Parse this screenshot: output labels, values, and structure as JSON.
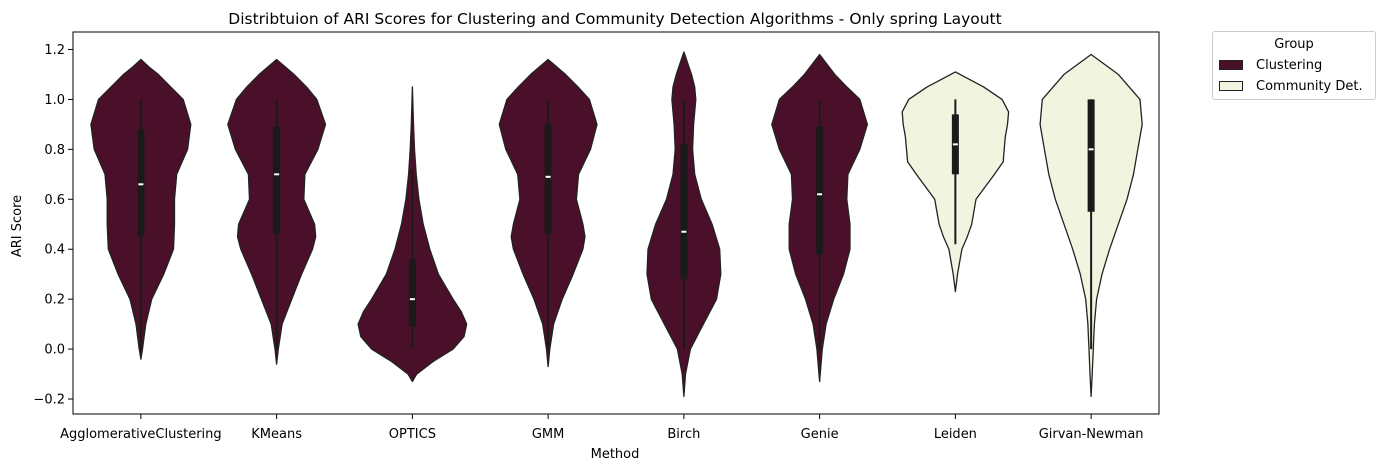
{
  "chart_data": {
    "type": "violin",
    "title": "Distribtuion of ARI Scores for Clustering and Community Detection Algorithms - Only spring Layoutt",
    "xlabel": "Method",
    "ylabel": "ARI Score",
    "ylim": [
      -0.26,
      1.27
    ],
    "yticks": [
      -0.2,
      0.0,
      0.2,
      0.4,
      0.6,
      0.8,
      1.0,
      1.2
    ],
    "ytick_labels": [
      "−0.2",
      "0.0",
      "0.2",
      "0.4",
      "0.6",
      "0.8",
      "1.0",
      "1.2"
    ],
    "categories": [
      "AgglomerativeClustering",
      "KMeans",
      "OPTICS",
      "GMM",
      "Birch",
      "Genie",
      "Leiden",
      "Girvan-Newman"
    ],
    "groups": [
      "Clustering",
      "Clustering",
      "Clustering",
      "Clustering",
      "Clustering",
      "Clustering",
      "Community Det.",
      "Community Det."
    ],
    "legend": {
      "title": "Group",
      "placement": "outside-top-right",
      "entries": [
        {
          "label": "Clustering",
          "color": "#4a1029"
        },
        {
          "label": "Community Det.",
          "color": "#f1f4df"
        }
      ]
    },
    "series": [
      {
        "name": "AgglomerativeClustering",
        "min": 0.0,
        "q1": 0.45,
        "median": 0.66,
        "q3": 0.88,
        "max": 1.0,
        "density_y": [
          -0.04,
          0.0,
          0.1,
          0.2,
          0.3,
          0.4,
          0.5,
          0.6,
          0.7,
          0.8,
          0.9,
          1.0,
          1.05,
          1.1,
          1.13,
          1.16
        ],
        "density_w": [
          0.0,
          0.03,
          0.09,
          0.2,
          0.42,
          0.6,
          0.62,
          0.62,
          0.66,
          0.86,
          0.92,
          0.78,
          0.55,
          0.32,
          0.15,
          0.0
        ]
      },
      {
        "name": "KMeans",
        "min": 0.0,
        "q1": 0.46,
        "median": 0.7,
        "q3": 0.89,
        "max": 1.0,
        "density_y": [
          -0.06,
          0.0,
          0.1,
          0.2,
          0.3,
          0.4,
          0.45,
          0.5,
          0.6,
          0.7,
          0.8,
          0.9,
          1.0,
          1.05,
          1.1,
          1.16
        ],
        "density_w": [
          0.0,
          0.03,
          0.1,
          0.28,
          0.46,
          0.66,
          0.72,
          0.7,
          0.5,
          0.52,
          0.76,
          0.9,
          0.74,
          0.55,
          0.32,
          0.0
        ]
      },
      {
        "name": "OPTICS",
        "min": 0.0,
        "q1": 0.09,
        "median": 0.2,
        "q3": 0.36,
        "max": 0.72,
        "density_y": [
          -0.13,
          -0.1,
          -0.05,
          0.0,
          0.05,
          0.1,
          0.15,
          0.2,
          0.3,
          0.4,
          0.5,
          0.6,
          0.7,
          0.8,
          0.9,
          1.05
        ],
        "density_w": [
          0.0,
          0.08,
          0.38,
          0.75,
          0.95,
          1.0,
          0.9,
          0.75,
          0.48,
          0.32,
          0.2,
          0.12,
          0.07,
          0.04,
          0.02,
          0.0
        ]
      },
      {
        "name": "GMM",
        "min": 0.0,
        "q1": 0.46,
        "median": 0.69,
        "q3": 0.9,
        "max": 1.0,
        "density_y": [
          -0.07,
          0.0,
          0.1,
          0.2,
          0.3,
          0.4,
          0.45,
          0.5,
          0.6,
          0.7,
          0.8,
          0.9,
          1.0,
          1.05,
          1.1,
          1.16
        ],
        "density_w": [
          0.0,
          0.03,
          0.1,
          0.26,
          0.46,
          0.64,
          0.68,
          0.64,
          0.52,
          0.56,
          0.78,
          0.9,
          0.76,
          0.55,
          0.32,
          0.0
        ]
      },
      {
        "name": "Birch",
        "min": 0.0,
        "q1": 0.28,
        "median": 0.47,
        "q3": 0.82,
        "max": 1.0,
        "density_y": [
          -0.19,
          -0.1,
          0.0,
          0.1,
          0.2,
          0.3,
          0.4,
          0.5,
          0.6,
          0.7,
          0.8,
          0.9,
          1.0,
          1.05,
          1.1,
          1.19
        ],
        "density_w": [
          0.0,
          0.03,
          0.12,
          0.36,
          0.6,
          0.68,
          0.66,
          0.52,
          0.32,
          0.2,
          0.16,
          0.18,
          0.22,
          0.2,
          0.14,
          0.0
        ]
      },
      {
        "name": "Genie",
        "min": 0.0,
        "q1": 0.38,
        "median": 0.62,
        "q3": 0.89,
        "max": 1.0,
        "density_y": [
          -0.13,
          0.0,
          0.1,
          0.2,
          0.3,
          0.4,
          0.5,
          0.6,
          0.7,
          0.8,
          0.9,
          1.0,
          1.05,
          1.1,
          1.14,
          1.18
        ],
        "density_w": [
          0.0,
          0.05,
          0.12,
          0.26,
          0.44,
          0.56,
          0.56,
          0.5,
          0.52,
          0.74,
          0.88,
          0.74,
          0.5,
          0.28,
          0.14,
          0.0
        ]
      },
      {
        "name": "Leiden",
        "min": 0.42,
        "q1": 0.7,
        "median": 0.82,
        "q3": 0.94,
        "max": 1.0,
        "density_y": [
          0.23,
          0.3,
          0.4,
          0.45,
          0.5,
          0.6,
          0.7,
          0.75,
          0.8,
          0.85,
          0.9,
          0.95,
          1.0,
          1.05,
          1.08,
          1.11
        ],
        "density_w": [
          0.0,
          0.04,
          0.12,
          0.22,
          0.3,
          0.38,
          0.72,
          0.88,
          0.9,
          0.92,
          0.96,
          0.98,
          0.86,
          0.52,
          0.26,
          0.0
        ]
      },
      {
        "name": "Girvan-Newman",
        "min": 0.0,
        "q1": 0.55,
        "median": 0.8,
        "q3": 1.0,
        "max": 1.0,
        "density_y": [
          -0.19,
          -0.1,
          0.0,
          0.05,
          0.1,
          0.2,
          0.3,
          0.4,
          0.5,
          0.6,
          0.7,
          0.8,
          0.9,
          1.0,
          1.1,
          1.18
        ],
        "density_w": [
          0.0,
          0.02,
          0.04,
          0.05,
          0.06,
          0.1,
          0.2,
          0.34,
          0.5,
          0.66,
          0.78,
          0.86,
          0.94,
          0.9,
          0.5,
          0.0
        ]
      }
    ]
  }
}
